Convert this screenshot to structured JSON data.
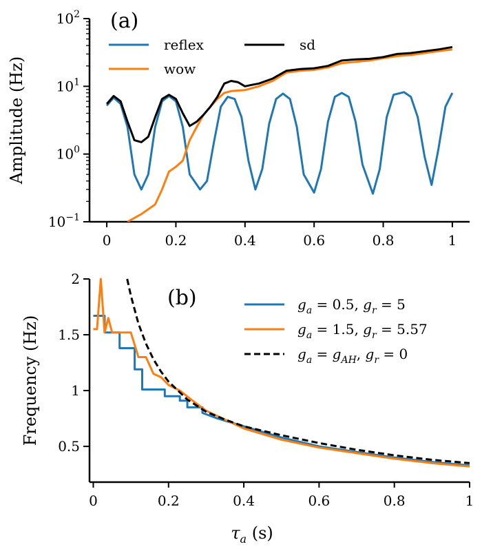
{
  "chart_data": [
    {
      "panel": "(a)",
      "type": "line",
      "yscale": "log",
      "ylabel": "Amplitude (Hz)",
      "xlabel": "",
      "xlim": [
        -0.05,
        1.05
      ],
      "ylim": [
        0.1,
        100
      ],
      "xticks": [
        0,
        0.2,
        0.4,
        0.6,
        0.8,
        1
      ],
      "xtick_labels": [
        "0",
        "0.2",
        "0.4",
        "0.6",
        "0.8",
        "1"
      ],
      "yticks": [
        0.1,
        1,
        10,
        100
      ],
      "ytick_labels": [
        {
          "base": "10",
          "exp": "−1"
        },
        {
          "base": "10",
          "exp": "0"
        },
        {
          "base": "10",
          "exp": "1"
        },
        {
          "base": "10",
          "exp": "2"
        }
      ],
      "legend": {
        "placement": "top-left",
        "columns": 2
      },
      "series": [
        {
          "name": "reflex",
          "color": "#1f77b4",
          "points": [
            [
              0,
              5.2
            ],
            [
              0.02,
              6.8
            ],
            [
              0.04,
              5.5
            ],
            [
              0.06,
              2.5
            ],
            [
              0.08,
              0.5
            ],
            [
              0.1,
              0.3
            ],
            [
              0.12,
              0.5
            ],
            [
              0.14,
              2.5
            ],
            [
              0.16,
              6.0
            ],
            [
              0.18,
              7.2
            ],
            [
              0.2,
              6.0
            ],
            [
              0.22,
              2.5
            ],
            [
              0.24,
              0.5
            ],
            [
              0.27,
              0.3
            ],
            [
              0.29,
              0.4
            ],
            [
              0.31,
              1.5
            ],
            [
              0.33,
              5.0
            ],
            [
              0.35,
              7.0
            ],
            [
              0.37,
              6.5
            ],
            [
              0.39,
              3.5
            ],
            [
              0.41,
              0.8
            ],
            [
              0.43,
              0.3
            ],
            [
              0.45,
              0.6
            ],
            [
              0.47,
              2.8
            ],
            [
              0.49,
              6.5
            ],
            [
              0.51,
              7.8
            ],
            [
              0.53,
              6.5
            ],
            [
              0.55,
              2.5
            ],
            [
              0.57,
              0.5
            ],
            [
              0.6,
              0.27
            ],
            [
              0.62,
              0.6
            ],
            [
              0.64,
              3.0
            ],
            [
              0.66,
              7.0
            ],
            [
              0.68,
              8.0
            ],
            [
              0.7,
              7.0
            ],
            [
              0.72,
              3.0
            ],
            [
              0.74,
              0.7
            ],
            [
              0.77,
              0.26
            ],
            [
              0.79,
              0.6
            ],
            [
              0.81,
              3.5
            ],
            [
              0.83,
              7.5
            ],
            [
              0.86,
              8.2
            ],
            [
              0.88,
              7.0
            ],
            [
              0.9,
              3.5
            ],
            [
              0.92,
              0.9
            ],
            [
              0.94,
              0.35
            ],
            [
              0.96,
              1.2
            ],
            [
              0.98,
              5.0
            ],
            [
              1.0,
              8.0
            ]
          ]
        },
        {
          "name": "wow",
          "color": "#ff7f0e",
          "points": [
            [
              0.06,
              0.1
            ],
            [
              0.1,
              0.13
            ],
            [
              0.14,
              0.18
            ],
            [
              0.16,
              0.3
            ],
            [
              0.18,
              0.55
            ],
            [
              0.2,
              0.65
            ],
            [
              0.22,
              0.8
            ],
            [
              0.24,
              1.6
            ],
            [
              0.26,
              2.5
            ],
            [
              0.28,
              3.8
            ],
            [
              0.3,
              5.0
            ],
            [
              0.32,
              6.5
            ],
            [
              0.34,
              8.0
            ],
            [
              0.36,
              8.5
            ],
            [
              0.4,
              8.8
            ],
            [
              0.44,
              10.0
            ],
            [
              0.48,
              12.0
            ],
            [
              0.52,
              16.0
            ],
            [
              0.56,
              17.0
            ],
            [
              0.6,
              17.5
            ],
            [
              0.64,
              19.0
            ],
            [
              0.68,
              22.0
            ],
            [
              0.72,
              23.0
            ],
            [
              0.76,
              24.0
            ],
            [
              0.8,
              26.0
            ],
            [
              0.84,
              28.0
            ],
            [
              0.88,
              29.0
            ],
            [
              0.92,
              31.0
            ],
            [
              0.96,
              33.0
            ],
            [
              1.0,
              35.0
            ]
          ]
        },
        {
          "name": "sd",
          "color": "#000000",
          "points": [
            [
              0,
              5.5
            ],
            [
              0.02,
              7.2
            ],
            [
              0.04,
              6.0
            ],
            [
              0.06,
              3.0
            ],
            [
              0.08,
              1.6
            ],
            [
              0.1,
              1.5
            ],
            [
              0.12,
              1.8
            ],
            [
              0.14,
              3.5
            ],
            [
              0.16,
              6.5
            ],
            [
              0.18,
              7.5
            ],
            [
              0.2,
              6.5
            ],
            [
              0.22,
              4.0
            ],
            [
              0.24,
              2.6
            ],
            [
              0.26,
              3.0
            ],
            [
              0.28,
              3.8
            ],
            [
              0.3,
              5.0
            ],
            [
              0.32,
              7.0
            ],
            [
              0.34,
              11.0
            ],
            [
              0.36,
              12.0
            ],
            [
              0.38,
              11.5
            ],
            [
              0.4,
              10.0
            ],
            [
              0.42,
              10.5
            ],
            [
              0.44,
              11.0
            ],
            [
              0.48,
              13.0
            ],
            [
              0.52,
              17.0
            ],
            [
              0.56,
              18.0
            ],
            [
              0.6,
              18.5
            ],
            [
              0.64,
              20.0
            ],
            [
              0.68,
              24.0
            ],
            [
              0.72,
              25.0
            ],
            [
              0.76,
              25.5
            ],
            [
              0.8,
              27.0
            ],
            [
              0.84,
              30.0
            ],
            [
              0.88,
              31.0
            ],
            [
              0.92,
              33.0
            ],
            [
              0.96,
              35.0
            ],
            [
              1.0,
              38.0
            ]
          ]
        }
      ]
    },
    {
      "panel": "(b)",
      "type": "line",
      "xlabel": "τ_a (s)",
      "ylabel": "Frequency (Hz)",
      "xlim": [
        -0.01,
        1.0
      ],
      "ylim": [
        0.18,
        2.0
      ],
      "xticks": [
        0,
        0.2,
        0.4,
        0.6,
        0.8,
        1
      ],
      "xtick_labels": [
        "0",
        "0.2",
        "0.4",
        "0.6",
        "0.8",
        "1"
      ],
      "yticks": [
        0.5,
        1,
        1.5,
        2
      ],
      "ytick_labels": [
        "0.5",
        "1",
        "1.5",
        "2"
      ],
      "legend": {
        "placement": "top-right",
        "columns": 1
      },
      "series": [
        {
          "name": "g_a = 0.5, g_r = 5",
          "legend_parts": [
            {
              "t": "g",
              "s": "a",
              "eq": " = 0.5, "
            },
            {
              "t": "g",
              "s": "r",
              "eq": " = 5"
            }
          ],
          "color": "#1f77b4",
          "dash": false,
          "points": [
            [
              0.0,
              1.67
            ],
            [
              0.03,
              1.67
            ],
            [
              0.03,
              1.52
            ],
            [
              0.07,
              1.52
            ],
            [
              0.07,
              1.38
            ],
            [
              0.11,
              1.38
            ],
            [
              0.11,
              1.19
            ],
            [
              0.13,
              1.19
            ],
            [
              0.13,
              1.01
            ],
            [
              0.19,
              1.01
            ],
            [
              0.19,
              0.95
            ],
            [
              0.23,
              0.95
            ],
            [
              0.23,
              0.91
            ],
            [
              0.25,
              0.91
            ],
            [
              0.25,
              0.85
            ],
            [
              0.29,
              0.85
            ],
            [
              0.29,
              0.8
            ],
            [
              0.33,
              0.75
            ],
            [
              0.4,
              0.68
            ],
            [
              0.5,
              0.58
            ],
            [
              0.6,
              0.5
            ],
            [
              0.7,
              0.45
            ],
            [
              0.8,
              0.4
            ],
            [
              0.9,
              0.36
            ],
            [
              1.0,
              0.33
            ]
          ]
        },
        {
          "name": "g_a = 1.5, g_r = 5.57",
          "legend_parts": [
            {
              "t": "g",
              "s": "a",
              "eq": " = 1.5, "
            },
            {
              "t": "g",
              "s": "r",
              "eq": " = 5.57"
            }
          ],
          "color": "#ff7f0e",
          "dash": false,
          "points": [
            [
              0.0,
              1.55
            ],
            [
              0.01,
              1.55
            ],
            [
              0.02,
              2.0
            ],
            [
              0.03,
              1.52
            ],
            [
              0.04,
              1.65
            ],
            [
              0.05,
              1.52
            ],
            [
              0.1,
              1.52
            ],
            [
              0.12,
              1.3
            ],
            [
              0.14,
              1.3
            ],
            [
              0.16,
              1.15
            ],
            [
              0.18,
              1.12
            ],
            [
              0.2,
              1.05
            ],
            [
              0.23,
              1.0
            ],
            [
              0.26,
              0.92
            ],
            [
              0.3,
              0.82
            ],
            [
              0.35,
              0.74
            ],
            [
              0.4,
              0.66
            ],
            [
              0.5,
              0.56
            ],
            [
              0.6,
              0.49
            ],
            [
              0.7,
              0.44
            ],
            [
              0.8,
              0.39
            ],
            [
              0.9,
              0.35
            ],
            [
              1.0,
              0.32
            ]
          ]
        },
        {
          "name": "g_a = g_AH, g_r = 0",
          "legend_parts": [
            {
              "t": "g",
              "s": "a",
              "eq": " = "
            },
            {
              "t": "g",
              "s": "AH",
              "eq": ", "
            },
            {
              "t": "g",
              "s": "r",
              "eq": " = 0"
            }
          ],
          "color": "#000000",
          "dash": true,
          "points": [
            [
              0.09,
              2.0
            ],
            [
              0.1,
              1.85
            ],
            [
              0.12,
              1.6
            ],
            [
              0.14,
              1.42
            ],
            [
              0.16,
              1.28
            ],
            [
              0.18,
              1.17
            ],
            [
              0.2,
              1.08
            ],
            [
              0.25,
              0.92
            ],
            [
              0.3,
              0.81
            ],
            [
              0.35,
              0.74
            ],
            [
              0.4,
              0.68
            ],
            [
              0.5,
              0.6
            ],
            [
              0.6,
              0.53
            ],
            [
              0.7,
              0.47
            ],
            [
              0.8,
              0.42
            ],
            [
              0.9,
              0.38
            ],
            [
              1.0,
              0.35
            ]
          ]
        }
      ]
    }
  ]
}
